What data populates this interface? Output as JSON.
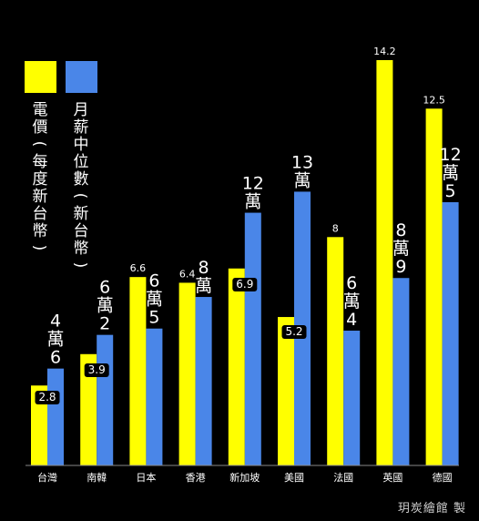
{
  "chart_data": {
    "type": "bar",
    "categories": [
      "台灣",
      "南韓",
      "日本",
      "香港",
      "新加坡",
      "美國",
      "法國",
      "英國",
      "德國"
    ],
    "series": [
      {
        "name": "電價(每度新台幣)",
        "color": "#FFFF00",
        "values": [
          2.8,
          3.9,
          6.6,
          6.4,
          6.9,
          5.2,
          8,
          14.2,
          12.5
        ],
        "labels": [
          "2.8",
          "3.9",
          "6.6",
          "6.4",
          "6.9",
          "5.2",
          "8",
          "14.2",
          "12.5"
        ]
      },
      {
        "name": "月薪中位數(新台幣)",
        "color": "#4A86E8",
        "values": [
          46000,
          62000,
          65000,
          80000,
          120000,
          130000,
          64000,
          89000,
          125000
        ],
        "labels": [
          "4萬6",
          "6萬2",
          "6萬5",
          "8萬",
          "12萬",
          "13萬",
          "6萬4",
          "8萬9",
          "12萬5"
        ]
      }
    ],
    "ylim_price": [
      0,
      14.2
    ],
    "ylim_salary": [
      0,
      145000
    ],
    "credit": "玥炭繪館 製"
  }
}
